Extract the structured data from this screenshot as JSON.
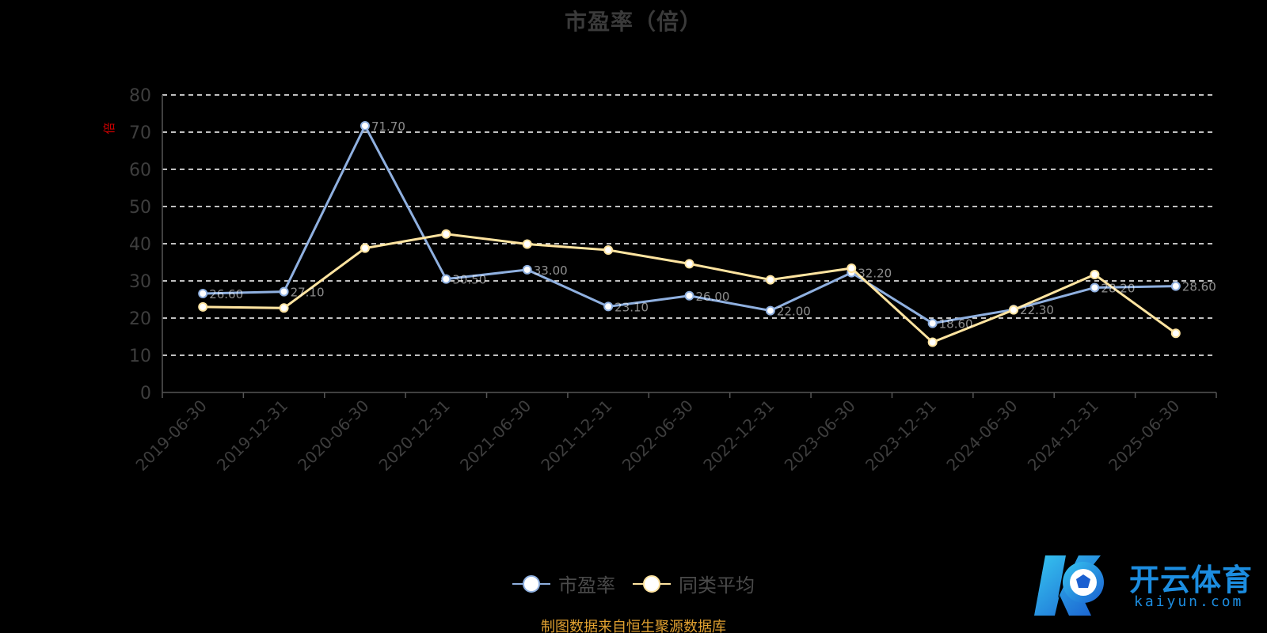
{
  "chart_data": {
    "type": "line",
    "title": "市盈率（倍）",
    "ylabel": "倍",
    "xlabel": "",
    "ylim": [
      0,
      80
    ],
    "yticks": [
      0,
      10,
      20,
      30,
      40,
      50,
      60,
      70,
      80
    ],
    "grid": true,
    "legend_position": "bottom",
    "categories": [
      "2019-06-30",
      "2019-12-31",
      "2020-06-30",
      "2020-12-31",
      "2021-06-30",
      "2021-12-31",
      "2022-06-30",
      "2022-12-31",
      "2023-06-30",
      "2023-12-31",
      "2024-06-30",
      "2024-12-31",
      "2025-06-30"
    ],
    "series": [
      {
        "name": "市盈率",
        "color": "#8fb0e0",
        "values": [
          26.6,
          27.1,
          71.7,
          30.5,
          33.0,
          23.1,
          26.0,
          22.0,
          32.2,
          18.6,
          22.3,
          28.2,
          28.6
        ]
      },
      {
        "name": "同类平均",
        "color": "#ffe4a0",
        "values": [
          23.0,
          22.7,
          38.8,
          42.6,
          39.9,
          38.3,
          34.6,
          30.3,
          33.4,
          13.5,
          22.2,
          31.7,
          15.9
        ]
      }
    ]
  },
  "source": "制图数据来自恒生聚源数据库",
  "watermark": {
    "brand": "开云体育",
    "domain": "kaiyun.com"
  }
}
